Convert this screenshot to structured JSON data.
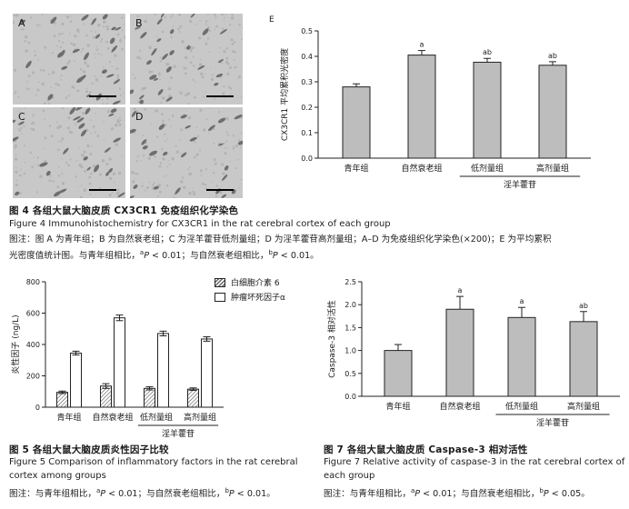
{
  "figure4": {
    "panels": [
      {
        "letter": "A"
      },
      {
        "letter": "B"
      },
      {
        "letter": "C"
      },
      {
        "letter": "D"
      }
    ],
    "title": "图 4  各组大鼠大脑皮质 CX3CR1 免疫组织化学染色",
    "title_en": "Figure 4   Immunohistochemistry for CX3CR1 in the rat cerebral cortex of each group",
    "note_line1": "图注：图 A 为青年组；B 为自然衰老组；C 为淫羊藿苷低剂量组；D 为淫羊藿苷高剂量组；A–D 为免疫组织化学染色(×200)；E 为平均累积",
    "note_line2_a": "光密度值统计图。与青年组相比，",
    "note_sup_a": "a",
    "note_p1": "P",
    "note_line2_b": " < 0.01；与自然衰老组相比，",
    "note_sup_b": "b",
    "note_p2": "P",
    "note_line2_c": " < 0.01。"
  },
  "chart_data": [
    {
      "type": "bar",
      "panel_letter": "E",
      "categories": [
        "青年组",
        "自然衰老组",
        "低剂量组",
        "高剂量组"
      ],
      "values": [
        0.28,
        0.405,
        0.377,
        0.365
      ],
      "errors": [
        0.012,
        0.018,
        0.015,
        0.014
      ],
      "significance": [
        "",
        "a",
        "ab",
        "ab"
      ],
      "ylabel": "CX3CR1 平均累积光密度",
      "ylim": [
        0,
        0.5
      ],
      "yticks": [
        "0.0",
        "0.1",
        "0.2",
        "0.3",
        "0.4",
        "0.5"
      ],
      "group_label": "淫羊藿苷"
    },
    {
      "type": "bar",
      "categories": [
        "青年组",
        "自然衰老组",
        "低剂量组",
        "高剂量组"
      ],
      "series": [
        {
          "name": "白细胞介素 6",
          "values": [
            95,
            135,
            120,
            115
          ],
          "errors": [
            8,
            15,
            10,
            8
          ]
        },
        {
          "name": "肿瘤坏死因子α",
          "values": [
            345,
            570,
            470,
            435
          ],
          "errors": [
            12,
            18,
            15,
            14
          ]
        }
      ],
      "ylabel": "炎性因子 (ng/L)",
      "ylim": [
        0,
        800
      ],
      "yticks": [
        "0",
        "200",
        "400",
        "600",
        "800"
      ],
      "group_label": "淫羊藿苷"
    },
    {
      "type": "bar",
      "categories": [
        "青年组",
        "自然衰老组",
        "低剂量组",
        "高剂量组"
      ],
      "values": [
        1.0,
        1.9,
        1.72,
        1.63
      ],
      "errors": [
        0.13,
        0.28,
        0.22,
        0.22
      ],
      "significance": [
        "",
        "a",
        "a",
        "ab"
      ],
      "ylabel": "Caspase-3 相对活性",
      "ylim": [
        0,
        2.5
      ],
      "yticks": [
        "0.0",
        "0.5",
        "1.0",
        "1.5",
        "2.0",
        "2.5"
      ],
      "group_label": "淫羊藿苷"
    }
  ],
  "figure5": {
    "title": "图 5   各组大鼠大脑皮质炎性因子比较",
    "title_en1": "Figure 5   Comparison of inflammatory factors in the rat cerebral",
    "title_en2": "cortex among groups",
    "note_a": "图注：与青年组相比，",
    "note_sup_a": "a",
    "note_p1": "P",
    "note_b": " < 0.01；与自然衰老组相比，",
    "note_sup_b": "b",
    "note_p2": "P",
    "note_c": " < 0.01。"
  },
  "figure7": {
    "title": "图 7   各组大鼠大脑皮质 Caspase-3 相对活性",
    "title_en1": "Figure 7   Relative activity of caspase-3 in the rat cerebral cortex of",
    "title_en2": "each group",
    "note_a": "图注：与青年组相比，",
    "note_sup_a": "a",
    "note_p1": "P",
    "note_b": " < 0.01；与自然衰老组相比，",
    "note_sup_b": "b",
    "note_p2": "P",
    "note_c": " < 0.05。"
  },
  "colors": {
    "bar_gray": "#bdbdbd",
    "axis": "#222222",
    "tissue": "#c8c8c8",
    "cell": "#6e6e6e"
  }
}
